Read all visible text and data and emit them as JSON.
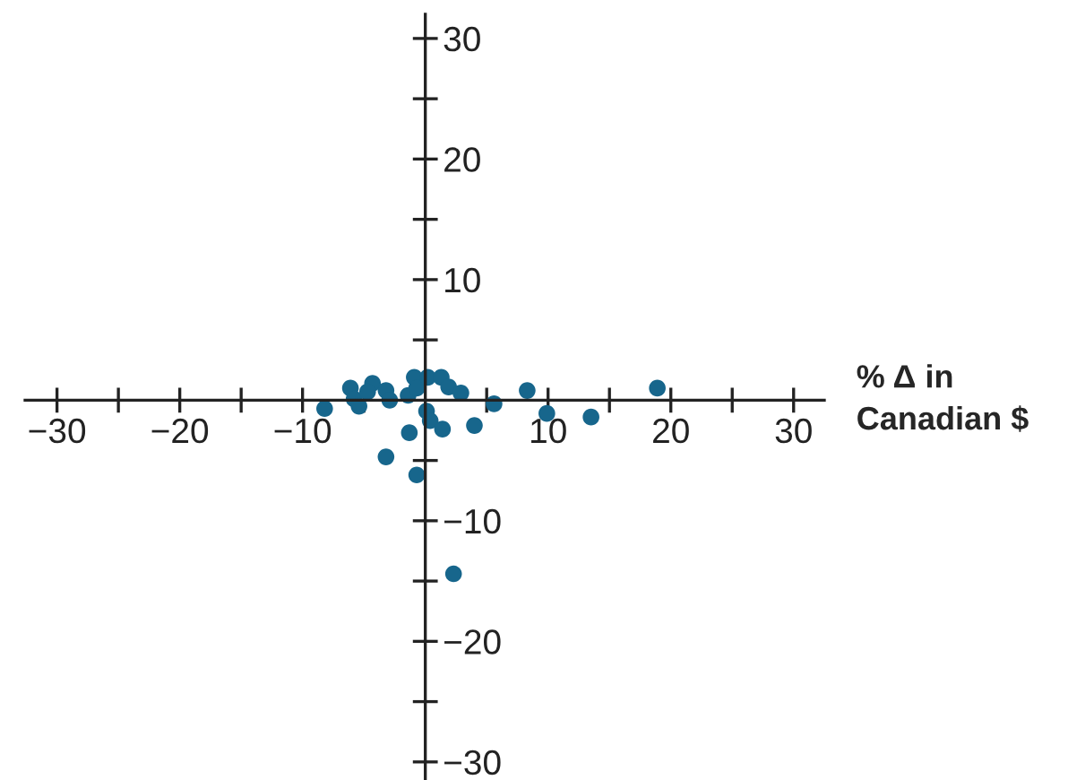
{
  "chart_data": {
    "type": "scatter",
    "xlabel": "% Δ in\nCanadian $",
    "x": [
      -8.2,
      -6.1,
      -5.8,
      -5.4,
      -4.3,
      -4.7,
      -3.2,
      -2.9,
      -1.4,
      -0.9,
      -0.7,
      0.2,
      1.3,
      1.9,
      2.9,
      5.6,
      8.3,
      9.9,
      13.5,
      18.9,
      0.1,
      0.4,
      1.4,
      4.0,
      -1.3,
      -3.2,
      -0.7,
      2.3
    ],
    "series": [
      {
        "color": "#17668c",
        "values": [
          -0.7,
          1.0,
          0.1,
          -0.5,
          1.4,
          0.7,
          0.8,
          0.0,
          0.4,
          1.9,
          1.0,
          1.9,
          1.9,
          1.1,
          0.6,
          -0.3,
          0.8,
          -1.1,
          -1.4,
          1.0,
          -0.9,
          -1.7,
          -2.4,
          -2.1,
          -2.7,
          -4.7,
          -6.2,
          -14.4
        ]
      }
    ],
    "xlim": [
      -32.6,
      32.5
    ],
    "ylim": [
      -31.5,
      32
    ],
    "xticks": [
      -30,
      {
        "value": -25,
        "label": null
      },
      -20,
      {
        "value": -15,
        "label": null
      },
      -10,
      {
        "value": -5,
        "label": null
      },
      10,
      {
        "value": 5,
        "label": null
      },
      {
        "value": 15,
        "label": null
      },
      20,
      {
        "value": 25,
        "label": null
      },
      30
    ],
    "yticks": [
      -30,
      {
        "value": -25,
        "label": null
      },
      -20,
      {
        "value": -15,
        "label": null
      },
      -10,
      {
        "value": -5,
        "label": null
      },
      10,
      {
        "value": 5,
        "label": null
      },
      {
        "value": 15,
        "label": null
      },
      20,
      {
        "value": 25,
        "label": null
      },
      30
    ],
    "marker": "circle",
    "grid": false,
    "legend": false
  }
}
